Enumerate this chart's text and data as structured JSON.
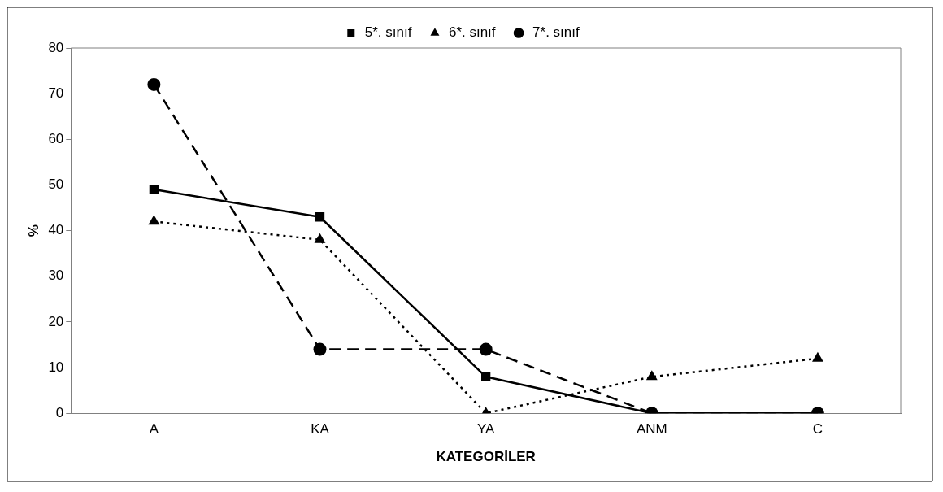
{
  "chart_data": {
    "type": "line",
    "xlabel": "KATEGORİLER",
    "ylabel": "%",
    "categories": [
      "A",
      "KA",
      "YA",
      "ANM",
      "C"
    ],
    "series": [
      {
        "name": "5*. sınıf",
        "color": "#000000",
        "marker": "square",
        "line_style": "solid",
        "values": [
          49,
          43,
          8,
          0,
          0
        ]
      },
      {
        "name": "6*. sınıf",
        "color": "#000000",
        "marker": "triangle",
        "line_style": "dotted",
        "values": [
          42,
          38,
          0,
          8,
          12
        ]
      },
      {
        "name": "7*. sınıf",
        "color": "#000000",
        "marker": "circle",
        "line_style": "dashed",
        "values": [
          72,
          14,
          14,
          0,
          0
        ]
      }
    ],
    "ylim": [
      0,
      80
    ],
    "yticks": [
      0,
      10,
      20,
      30,
      40,
      50,
      60,
      70,
      80
    ],
    "grid": false,
    "legend": "top"
  }
}
